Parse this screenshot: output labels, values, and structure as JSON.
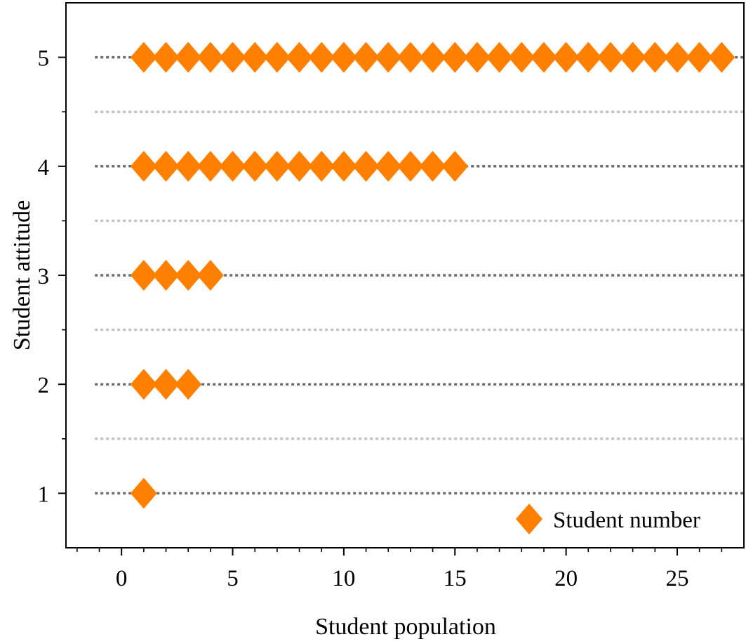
{
  "chart_data": {
    "type": "scatter",
    "title": "",
    "xlabel": "Student population",
    "ylabel": "Student attitude",
    "xlim": [
      -2.5,
      28
    ],
    "ylim": [
      0.5,
      5.5
    ],
    "xticks": [
      0,
      5,
      10,
      15,
      20,
      25
    ],
    "yticks": [
      1,
      2,
      3,
      4,
      5
    ],
    "grid": "horizontal dashed",
    "legend_position": "bottom-right",
    "marker": "diamond",
    "marker_color": "#ff8000",
    "series": [
      {
        "name": "Student number",
        "counts_by_attitude": [
          {
            "attitude": 1,
            "count": 1
          },
          {
            "attitude": 2,
            "count": 3
          },
          {
            "attitude": 3,
            "count": 4
          },
          {
            "attitude": 4,
            "count": 15
          },
          {
            "attitude": 5,
            "count": 27
          }
        ]
      }
    ]
  }
}
